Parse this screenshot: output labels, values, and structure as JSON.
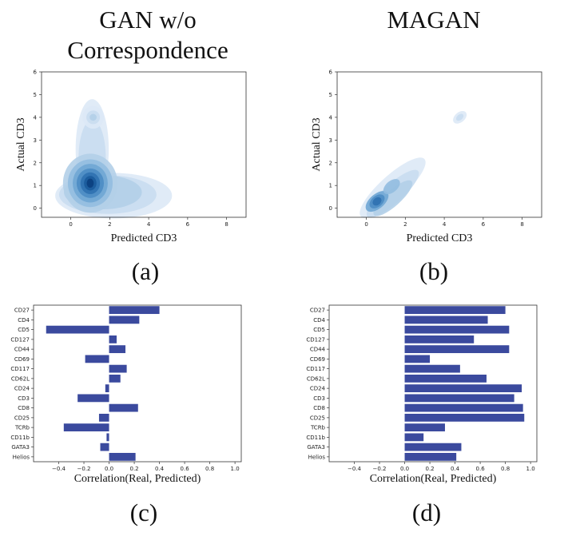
{
  "titles": {
    "left": "GAN w/o Correspondence",
    "right": "MAGAN"
  },
  "captions": [
    "(a)",
    "(b)",
    "(c)",
    "(d)"
  ],
  "colors": {
    "bar": "#3b4a9e",
    "kde_dark": "#0b3a7a",
    "kde_light": "#dbe8f6"
  },
  "chart_data": [
    {
      "type": "kde",
      "xlabel": "Predicted CD3",
      "ylabel": "Actual CD3",
      "xlim": [
        -1.5,
        9
      ],
      "ylim": [
        -0.4,
        6
      ],
      "xticks": [
        0,
        2,
        4,
        6,
        8
      ],
      "yticks": [
        0,
        1,
        2,
        3,
        4,
        5,
        6
      ],
      "density_modes": [
        {
          "x": 1.0,
          "y": 1.1,
          "note": "main mode"
        },
        {
          "x": 1.1,
          "y": 4.0,
          "note": "secondary mode"
        }
      ]
    },
    {
      "type": "kde",
      "xlabel": "Predicted CD3",
      "ylabel": "Actual CD3",
      "xlim": [
        -1.5,
        9
      ],
      "ylim": [
        -0.4,
        6
      ],
      "xticks": [
        0,
        2,
        4,
        6,
        8
      ],
      "yticks": [
        0,
        1,
        2,
        3,
        4,
        5,
        6
      ],
      "density_modes": [
        {
          "x": 0.4,
          "y": 0.15,
          "note": "main mode"
        },
        {
          "x": 4.8,
          "y": 4.0,
          "note": "secondary mode"
        }
      ]
    },
    {
      "type": "bar",
      "orientation": "horizontal",
      "xlabel": "Correlation(Real, Predicted)",
      "xlim": [
        -0.6,
        1.05
      ],
      "xticks": [
        -0.4,
        -0.2,
        0.0,
        0.2,
        0.4,
        0.6,
        0.8,
        1.0
      ],
      "xtick_labels": [
        "−0.4",
        "−0.2",
        "0.0",
        "0.2",
        "0.4",
        "0.6",
        "0.8",
        "1.0"
      ],
      "categories": [
        "CD27",
        "CD4",
        "CD5",
        "CD127",
        "CD44",
        "CD69",
        "CD117",
        "CD62L",
        "CD24",
        "CD3",
        "CD8",
        "CD25",
        "TCRb",
        "CD11b",
        "GATA3",
        "Helios"
      ],
      "values": [
        0.4,
        0.24,
        -0.5,
        0.06,
        0.13,
        -0.19,
        0.14,
        0.09,
        -0.03,
        -0.25,
        0.23,
        -0.08,
        -0.36,
        -0.02,
        -0.07,
        0.21
      ]
    },
    {
      "type": "bar",
      "orientation": "horizontal",
      "xlabel": "Correlation(Real, Predicted)",
      "xlim": [
        -0.6,
        1.05
      ],
      "xticks": [
        -0.4,
        -0.2,
        0.0,
        0.2,
        0.4,
        0.6,
        0.8,
        1.0
      ],
      "xtick_labels": [
        "−0.4",
        "−0.2",
        "0.0",
        "0.2",
        "0.4",
        "0.6",
        "0.8",
        "1.0"
      ],
      "categories": [
        "CD27",
        "CD4",
        "CD5",
        "CD127",
        "CD44",
        "CD69",
        "CD117",
        "CD62L",
        "CD24",
        "CD3",
        "CD8",
        "CD25",
        "TCRb",
        "CD11b",
        "GATA3",
        "Helios"
      ],
      "values": [
        0.8,
        0.66,
        0.83,
        0.55,
        0.83,
        0.2,
        0.44,
        0.65,
        0.93,
        0.87,
        0.94,
        0.95,
        0.32,
        0.15,
        0.45,
        0.41
      ]
    }
  ]
}
